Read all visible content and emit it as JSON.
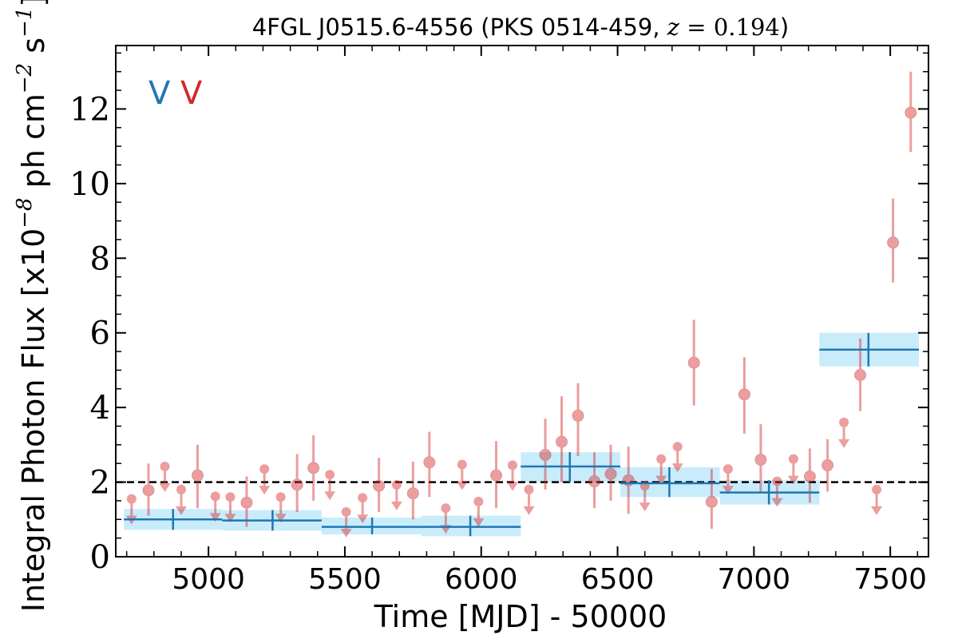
{
  "chart_data": {
    "type": "scatter",
    "title": {
      "prefix": "4FGL J0515.6-4556 (PKS 0514-459, ",
      "z_symbol": "z",
      "equals": " = ",
      "z_value": "0.194",
      "suffix": ")"
    },
    "xlabel": "Time [MJD] - 50000",
    "ylabel": "Integral Photon Flux [x10",
    "ylabel_exp": "−8",
    "ylabel_mid": " ph cm",
    "ylabel_exp2": "−2",
    "ylabel_end": " s",
    "ylabel_exp3": "−1",
    "ylabel_close": "]",
    "xlim": [
      4660,
      7640
    ],
    "ylim": [
      0,
      13.7
    ],
    "xticks": [
      5000,
      5500,
      6000,
      6500,
      7000,
      7500
    ],
    "xtick_labels": [
      "5000",
      "5500",
      "6000",
      "6500",
      "7000",
      "7500"
    ],
    "yticks": [
      0,
      2,
      4,
      6,
      8,
      10,
      12
    ],
    "ytick_labels": [
      "0",
      "2",
      "4",
      "6",
      "8",
      "10",
      "12"
    ],
    "reference_line": 2.0,
    "legend_markers": [
      "V",
      "V"
    ],
    "colors": {
      "long_bins": "#1f77b4",
      "long_bins_band": "#c9ecfb",
      "short_bins": "#d62728",
      "reference": "#000000"
    },
    "long_bins": [
      {
        "x": 4870,
        "x_lo": 4690,
        "x_hi": 5050,
        "y": 1.0,
        "y_lo": 0.72,
        "y_hi": 1.28
      },
      {
        "x": 5235,
        "x_lo": 5050,
        "x_hi": 5415,
        "y": 0.97,
        "y_lo": 0.7,
        "y_hi": 1.25
      },
      {
        "x": 5600,
        "x_lo": 5415,
        "x_hi": 5780,
        "y": 0.8,
        "y_lo": 0.6,
        "y_hi": 1.05
      },
      {
        "x": 5960,
        "x_lo": 5780,
        "x_hi": 6145,
        "y": 0.8,
        "y_lo": 0.55,
        "y_hi": 1.1
      },
      {
        "x": 6325,
        "x_lo": 6145,
        "x_hi": 6510,
        "y": 2.42,
        "y_lo": 2.0,
        "y_hi": 2.8
      },
      {
        "x": 6690,
        "x_lo": 6510,
        "x_hi": 6875,
        "y": 1.97,
        "y_lo": 1.6,
        "y_hi": 2.4
      },
      {
        "x": 7055,
        "x_lo": 6875,
        "x_hi": 7240,
        "y": 1.72,
        "y_lo": 1.4,
        "y_hi": 2.05
      },
      {
        "x": 7420,
        "x_lo": 7240,
        "x_hi": 7605,
        "y": 5.55,
        "y_lo": 5.1,
        "y_hi": 6.0
      }
    ],
    "short_bins": [
      {
        "x": 4718,
        "y": 1.55,
        "upper_limit": true
      },
      {
        "x": 4780,
        "y": 1.78,
        "y_lo": 1.1,
        "y_hi": 2.5
      },
      {
        "x": 4840,
        "y": 2.42,
        "upper_limit": true
      },
      {
        "x": 4900,
        "y": 1.8,
        "upper_limit": true
      },
      {
        "x": 4960,
        "y": 2.18,
        "y_lo": 1.3,
        "y_hi": 3.0
      },
      {
        "x": 5025,
        "y": 1.62,
        "upper_limit": true
      },
      {
        "x": 5080,
        "y": 1.6,
        "upper_limit": true
      },
      {
        "x": 5140,
        "y": 1.45,
        "y_lo": 0.8,
        "y_hi": 2.15
      },
      {
        "x": 5205,
        "y": 2.35,
        "upper_limit": true
      },
      {
        "x": 5265,
        "y": 1.6,
        "upper_limit": true
      },
      {
        "x": 5325,
        "y": 1.93,
        "y_lo": 1.2,
        "y_hi": 2.75
      },
      {
        "x": 5385,
        "y": 2.38,
        "y_lo": 1.5,
        "y_hi": 3.25
      },
      {
        "x": 5445,
        "y": 2.2,
        "upper_limit": true
      },
      {
        "x": 5505,
        "y": 1.2,
        "upper_limit": true
      },
      {
        "x": 5565,
        "y": 1.58,
        "upper_limit": true
      },
      {
        "x": 5625,
        "y": 1.9,
        "y_lo": 1.2,
        "y_hi": 2.65
      },
      {
        "x": 5690,
        "y": 1.93,
        "upper_limit": true
      },
      {
        "x": 5750,
        "y": 1.7,
        "y_lo": 1.0,
        "y_hi": 2.55
      },
      {
        "x": 5810,
        "y": 2.53,
        "y_lo": 1.6,
        "y_hi": 3.35
      },
      {
        "x": 5870,
        "y": 1.3,
        "upper_limit": true
      },
      {
        "x": 5930,
        "y": 2.47,
        "upper_limit": true
      },
      {
        "x": 5990,
        "y": 1.48,
        "upper_limit": true
      },
      {
        "x": 6055,
        "y": 2.18,
        "y_lo": 1.3,
        "y_hi": 3.1
      },
      {
        "x": 6115,
        "y": 2.45,
        "upper_limit": true
      },
      {
        "x": 6175,
        "y": 1.8,
        "upper_limit": true
      },
      {
        "x": 6235,
        "y": 2.73,
        "y_lo": 1.8,
        "y_hi": 3.7
      },
      {
        "x": 6295,
        "y": 3.08,
        "y_lo": 2.0,
        "y_hi": 4.3
      },
      {
        "x": 6355,
        "y": 3.78,
        "y_lo": 2.7,
        "y_hi": 4.65
      },
      {
        "x": 6415,
        "y": 2.02,
        "y_lo": 1.3,
        "y_hi": 2.8
      },
      {
        "x": 6475,
        "y": 2.22,
        "y_lo": 1.5,
        "y_hi": 3.0
      },
      {
        "x": 6540,
        "y": 2.05,
        "y_lo": 1.15,
        "y_hi": 2.95
      },
      {
        "x": 6600,
        "y": 1.9,
        "upper_limit": true
      },
      {
        "x": 6660,
        "y": 2.62,
        "upper_limit": true
      },
      {
        "x": 6720,
        "y": 2.95,
        "upper_limit": true
      },
      {
        "x": 6780,
        "y": 5.2,
        "y_lo": 4.05,
        "y_hi": 6.35
      },
      {
        "x": 6845,
        "y": 1.47,
        "y_lo": 0.75,
        "y_hi": 2.35
      },
      {
        "x": 6905,
        "y": 2.35,
        "upper_limit": true
      },
      {
        "x": 6965,
        "y": 4.35,
        "y_lo": 3.3,
        "y_hi": 5.35
      },
      {
        "x": 7025,
        "y": 2.6,
        "y_lo": 1.7,
        "y_hi": 3.55
      },
      {
        "x": 7085,
        "y": 2.02,
        "upper_limit": true
      },
      {
        "x": 7145,
        "y": 2.62,
        "upper_limit": true
      },
      {
        "x": 7205,
        "y": 2.15,
        "y_lo": 1.45,
        "y_hi": 2.9
      },
      {
        "x": 7270,
        "y": 2.45,
        "y_lo": 1.75,
        "y_hi": 3.15
      },
      {
        "x": 7330,
        "y": 3.6,
        "upper_limit": true
      },
      {
        "x": 7390,
        "y": 4.87,
        "y_lo": 3.9,
        "y_hi": 5.85
      },
      {
        "x": 7450,
        "y": 1.8,
        "upper_limit": true
      },
      {
        "x": 7510,
        "y": 8.42,
        "y_lo": 7.35,
        "y_hi": 9.6
      },
      {
        "x": 7575,
        "y": 11.9,
        "y_lo": 10.85,
        "y_hi": 13.0
      }
    ]
  }
}
